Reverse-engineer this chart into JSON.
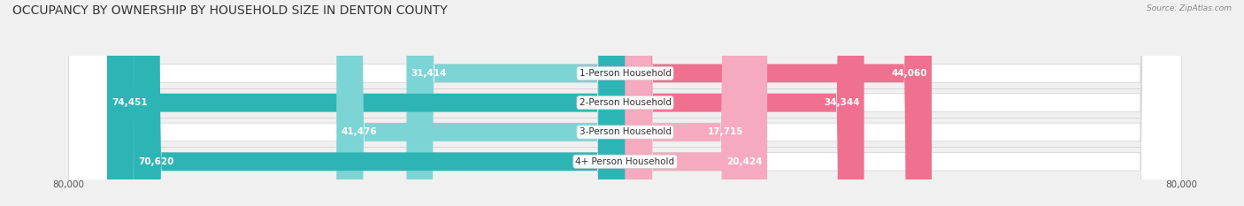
{
  "title": "OCCUPANCY BY OWNERSHIP BY HOUSEHOLD SIZE IN DENTON COUNTY",
  "source": "Source: ZipAtlas.com",
  "categories": [
    "1-Person Household",
    "2-Person Household",
    "3-Person Household",
    "4+ Person Household"
  ],
  "owner_values": [
    31414,
    74451,
    41476,
    70620
  ],
  "renter_values": [
    44060,
    34344,
    17715,
    20424
  ],
  "owner_color_strong": "#2db5b5",
  "owner_color_light": "#7dd4d4",
  "renter_color_strong": "#f07090",
  "renter_color_light": "#f5aac0",
  "axis_max": 80000,
  "bg_color": "#f0f0f0",
  "bar_bg_color": "#e0e0e0",
  "title_fontsize": 10,
  "label_fontsize": 7.5,
  "tick_fontsize": 7.5,
  "bar_height": 0.62,
  "label_color_white": "#ffffff",
  "label_color_dark": "#444444"
}
